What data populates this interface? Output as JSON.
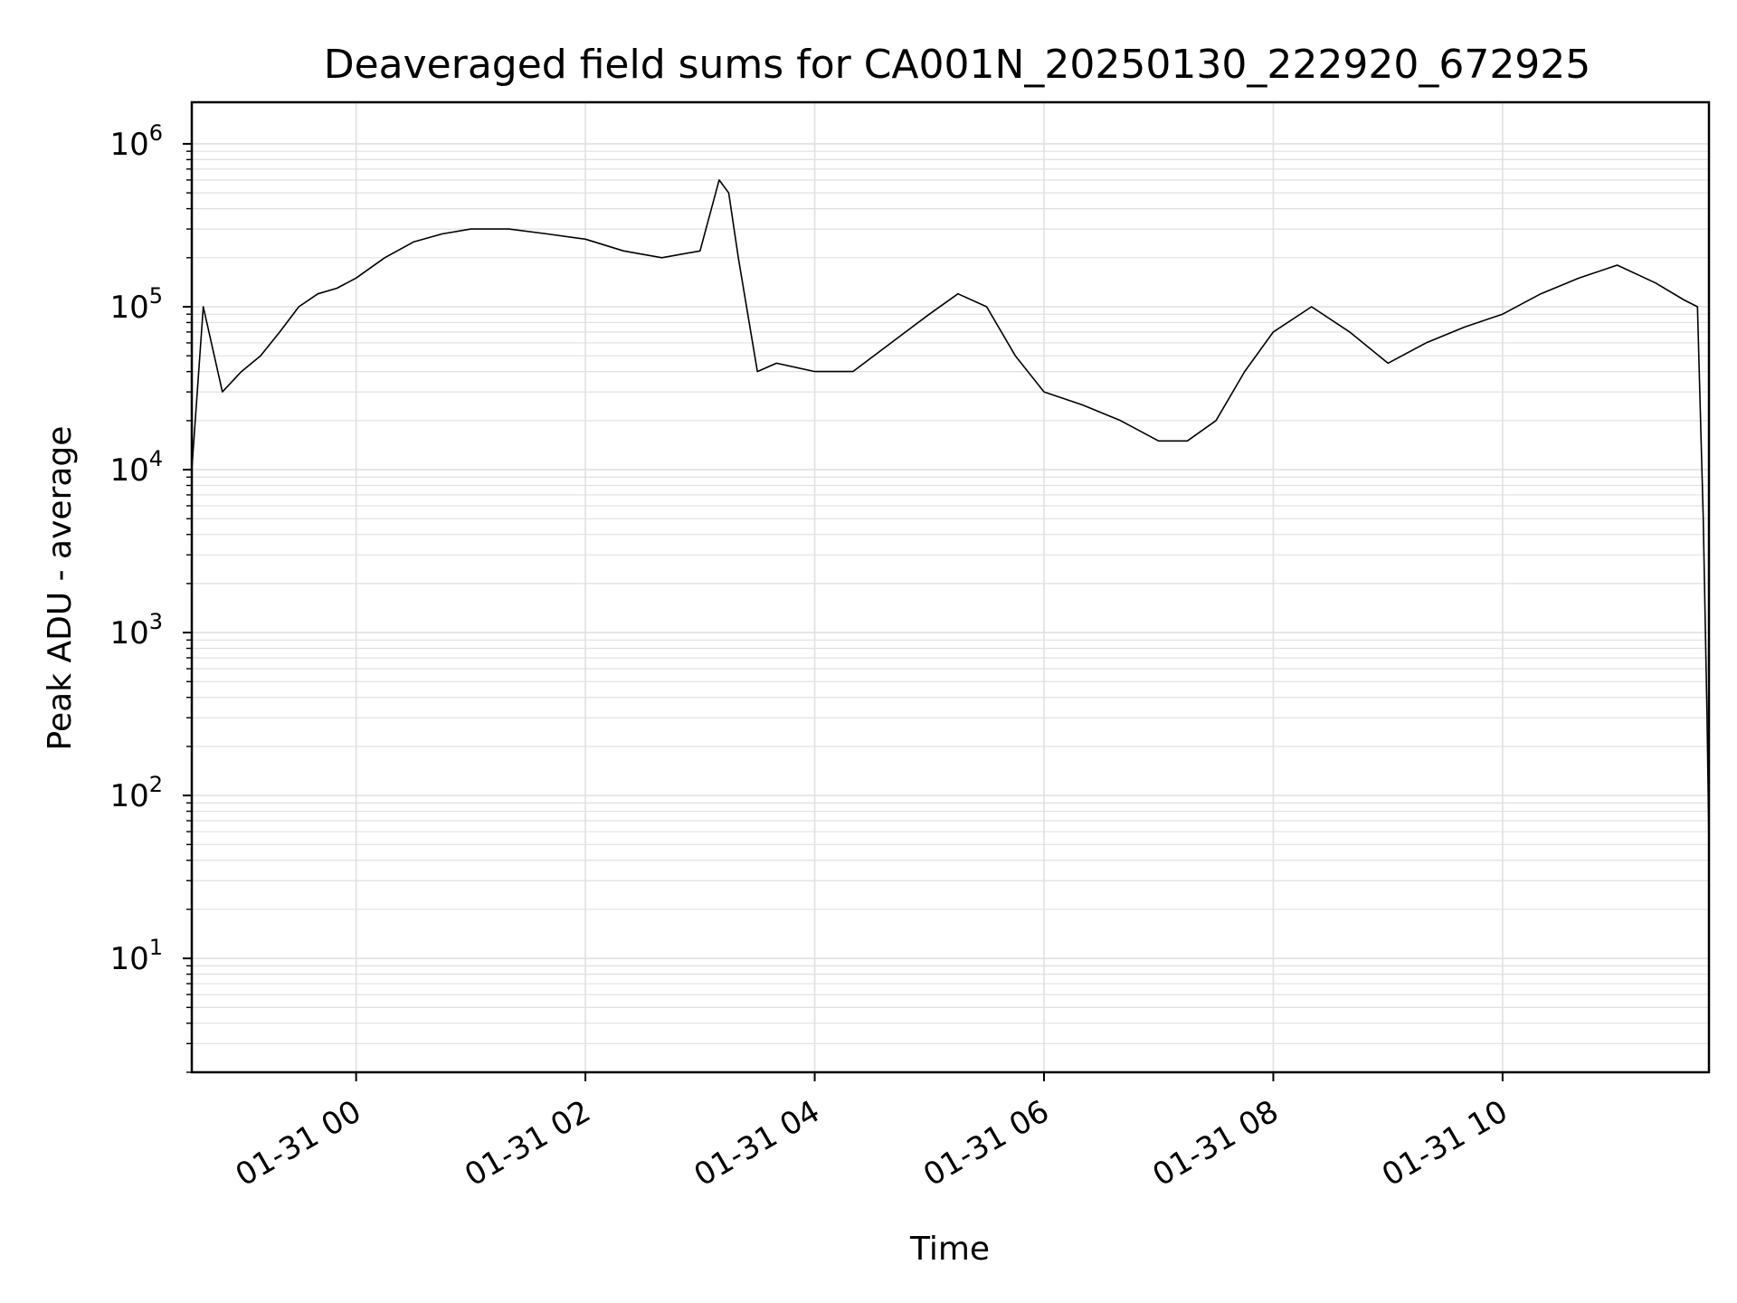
{
  "chart_data": {
    "type": "line",
    "title": "Deaveraged field sums for CA001N_20250130_222920_672925",
    "xlabel": "Time",
    "ylabel": "Peak ADU - average",
    "yscale": "log",
    "ylim": [
      2,
      1800000
    ],
    "xlim": [
      "2025-01-30 22:34",
      "2025-01-31 11:48"
    ],
    "grid": {
      "major": true,
      "minor": true,
      "color": "#e0e0e0"
    },
    "line_color": "#000000",
    "x_ticks": [
      {
        "value": "2025-01-31 00:00",
        "label": "01-31 00"
      },
      {
        "value": "2025-01-31 02:00",
        "label": "01-31 02"
      },
      {
        "value": "2025-01-31 04:00",
        "label": "01-31 04"
      },
      {
        "value": "2025-01-31 06:00",
        "label": "01-31 06"
      },
      {
        "value": "2025-01-31 08:00",
        "label": "01-31 08"
      },
      {
        "value": "2025-01-31 10:00",
        "label": "01-31 10"
      }
    ],
    "y_ticks": [
      {
        "value": 10,
        "base": "10",
        "exp": "1"
      },
      {
        "value": 100,
        "base": "10",
        "exp": "2"
      },
      {
        "value": 1000,
        "base": "10",
        "exp": "3"
      },
      {
        "value": 10000,
        "base": "10",
        "exp": "4"
      },
      {
        "value": 100000,
        "base": "10",
        "exp": "5"
      },
      {
        "value": 1000000,
        "base": "10",
        "exp": "6"
      }
    ],
    "series": [
      {
        "x": [
          "2025-01-30 22:34",
          "2025-01-30 22:40",
          "2025-01-30 22:50",
          "2025-01-30 23:00",
          "2025-01-30 23:10",
          "2025-01-30 23:20",
          "2025-01-30 23:30",
          "2025-01-30 23:40",
          "2025-01-30 23:50",
          "2025-01-31 00:00",
          "2025-01-31 00:15",
          "2025-01-31 00:30",
          "2025-01-31 00:45",
          "2025-01-31 01:00",
          "2025-01-31 01:20",
          "2025-01-31 01:40",
          "2025-01-31 02:00",
          "2025-01-31 02:20",
          "2025-01-31 02:40",
          "2025-01-31 03:00",
          "2025-01-31 03:10",
          "2025-01-31 03:15",
          "2025-01-31 03:20",
          "2025-01-31 03:30",
          "2025-01-31 03:40",
          "2025-01-31 04:00",
          "2025-01-31 04:20",
          "2025-01-31 04:40",
          "2025-01-31 05:00",
          "2025-01-31 05:15",
          "2025-01-31 05:30",
          "2025-01-31 05:45",
          "2025-01-31 06:00",
          "2025-01-31 06:20",
          "2025-01-31 06:40",
          "2025-01-31 07:00",
          "2025-01-31 07:15",
          "2025-01-31 07:30",
          "2025-01-31 07:45",
          "2025-01-31 08:00",
          "2025-01-31 08:20",
          "2025-01-31 08:40",
          "2025-01-31 09:00",
          "2025-01-31 09:20",
          "2025-01-31 09:40",
          "2025-01-31 10:00",
          "2025-01-31 10:20",
          "2025-01-31 10:40",
          "2025-01-31 11:00",
          "2025-01-31 11:20",
          "2025-01-31 11:35",
          "2025-01-31 11:42",
          "2025-01-31 11:45",
          "2025-01-31 11:47",
          "2025-01-31 11:48"
        ],
        "y": [
          10000,
          100000,
          30000,
          40000,
          50000,
          70000,
          100000,
          120000,
          130000,
          150000,
          200000,
          250000,
          280000,
          300000,
          300000,
          280000,
          260000,
          220000,
          200000,
          220000,
          600000,
          500000,
          200000,
          40000,
          45000,
          40000,
          40000,
          60000,
          90000,
          120000,
          100000,
          50000,
          30000,
          25000,
          20000,
          15000,
          15000,
          20000,
          40000,
          70000,
          100000,
          70000,
          45000,
          60000,
          75000,
          90000,
          120000,
          150000,
          180000,
          140000,
          110000,
          100000,
          5000,
          300,
          50
        ]
      }
    ]
  }
}
